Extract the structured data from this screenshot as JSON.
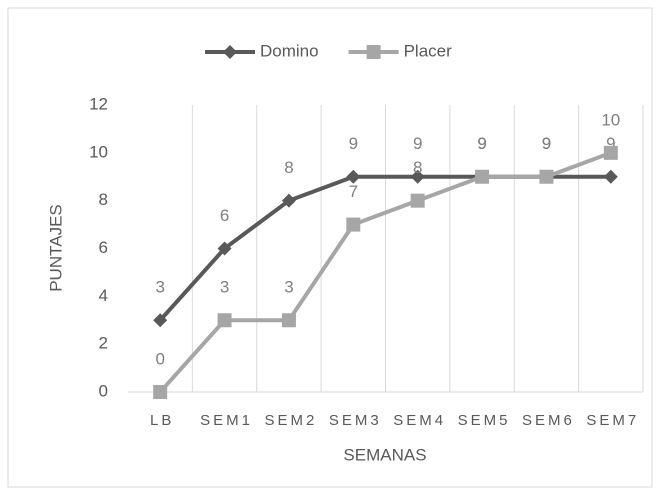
{
  "chart_data": {
    "type": "line",
    "categories": [
      "LB",
      "SEM1",
      "SEM2",
      "SEM3",
      "SEM4",
      "SEM5",
      "SEM6",
      "SEM7"
    ],
    "series": [
      {
        "name": "Domino",
        "color": "#595959",
        "marker": "diamond",
        "values": [
          3,
          6,
          8,
          9,
          9,
          9,
          9,
          9
        ]
      },
      {
        "name": "Placer",
        "color": "#a6a6a6",
        "marker": "square",
        "values": [
          0,
          3,
          3,
          7,
          8,
          9,
          9,
          10
        ]
      }
    ],
    "ylim": [
      0,
      12
    ],
    "yticks": [
      0,
      2,
      4,
      6,
      8,
      10,
      12
    ],
    "ylabel": "PUNTAJES",
    "xlabel": "SEMANAS",
    "grid": "x",
    "legend": "top"
  }
}
